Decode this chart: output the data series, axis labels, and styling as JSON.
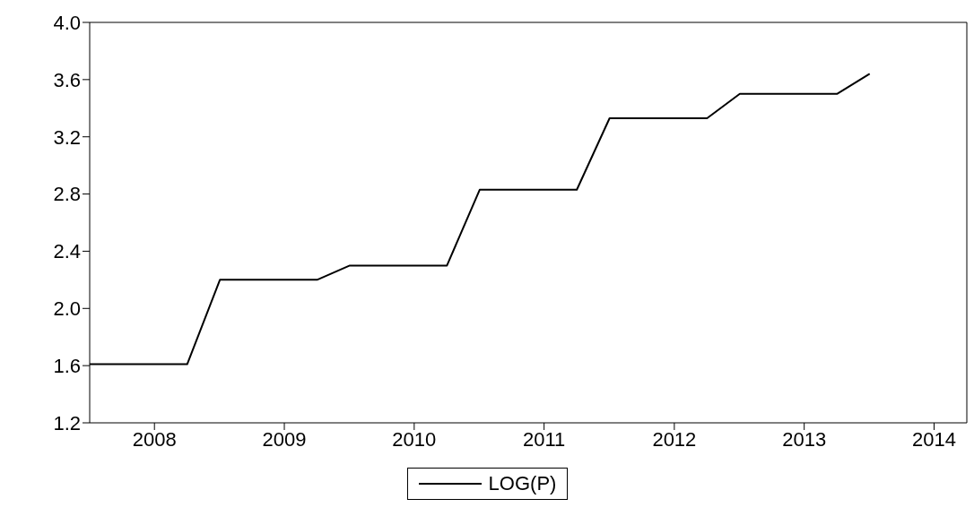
{
  "chart_data": {
    "type": "line",
    "x": [
      "2008-01",
      "2008-04",
      "2008-07",
      "2008-10",
      "2009-01",
      "2009-04",
      "2009-07",
      "2009-10",
      "2010-01",
      "2010-04",
      "2010-07",
      "2010-10",
      "2011-01",
      "2011-04",
      "2011-07",
      "2011-10",
      "2012-01",
      "2012-04",
      "2012-07",
      "2012-10",
      "2013-01",
      "2013-04",
      "2013-07",
      "2013-10",
      "2014-01"
    ],
    "series": [
      {
        "name": "LOG(P)",
        "color": "#000000",
        "values": [
          1.61,
          1.61,
          1.61,
          1.61,
          2.2,
          2.2,
          2.2,
          2.2,
          2.3,
          2.3,
          2.3,
          2.3,
          2.83,
          2.83,
          2.83,
          2.83,
          3.33,
          3.33,
          3.33,
          3.33,
          3.5,
          3.5,
          3.5,
          3.5,
          3.64
        ]
      }
    ],
    "xlim": [
      "2008-01",
      "2014-10"
    ],
    "xticks": [
      {
        "value": "2008-07",
        "label": "2008"
      },
      {
        "value": "2009-07",
        "label": "2009"
      },
      {
        "value": "2010-07",
        "label": "2010"
      },
      {
        "value": "2011-07",
        "label": "2011"
      },
      {
        "value": "2012-07",
        "label": "2012"
      },
      {
        "value": "2013-07",
        "label": "2013"
      },
      {
        "value": "2014-07",
        "label": "2014"
      }
    ],
    "ylim": [
      1.2,
      4.0
    ],
    "yticks": [
      1.2,
      1.6,
      {
        "value": 2,
        "label": "2.0"
      },
      2.4,
      2.8,
      3.2,
      3.6,
      {
        "value": 4,
        "label": "4.0"
      }
    ],
    "grid": false,
    "legend": "bottom",
    "marker": "none",
    "line_style": "solid"
  }
}
